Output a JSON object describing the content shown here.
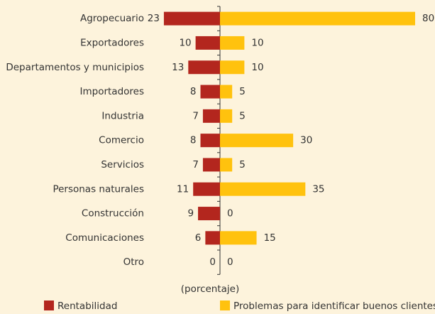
{
  "chart_data": {
    "type": "diverging-bar",
    "categories": [
      "Agropecuario",
      "Exportadores",
      "Departamentos y municipios",
      "Importadores",
      "Industria",
      "Comercio",
      "Servicios",
      "Personas naturales",
      "Construcción",
      "Comunicaciones",
      "Otro"
    ],
    "series": [
      {
        "name": "Rentabilidad",
        "color": "#b3261e",
        "values": [
          23,
          10,
          13,
          8,
          7,
          8,
          7,
          11,
          9,
          6,
          0
        ]
      },
      {
        "name": "Problemas para identificar buenos clientes",
        "color": "#ffc20e",
        "values": [
          80,
          10,
          10,
          5,
          5,
          30,
          5,
          35,
          0,
          15,
          0
        ]
      }
    ],
    "xlabel": "(porcentaje)"
  }
}
